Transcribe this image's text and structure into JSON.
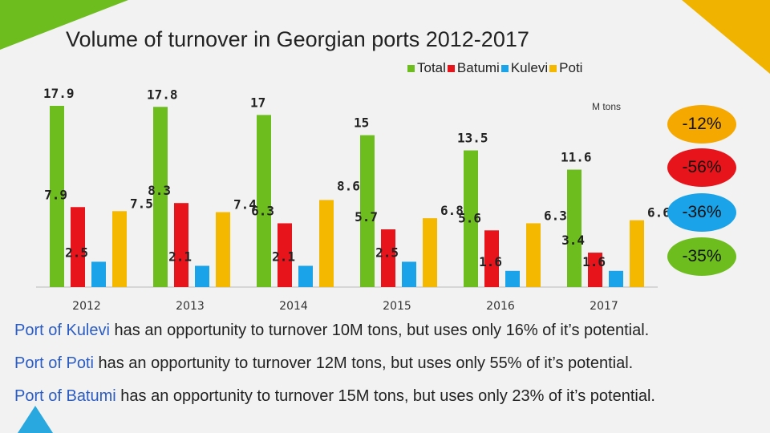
{
  "slide": {
    "title": "Volume of turnover in Georgian ports 2012-2017",
    "unit": "M tons"
  },
  "chart_data": {
    "type": "bar",
    "title": "Volume of turnover in Georgian ports 2012-2017",
    "categories": [
      "2012",
      "2013",
      "2014",
      "2015",
      "2016",
      "2017"
    ],
    "series": [
      {
        "name": "Total",
        "color": "#6cbd1d",
        "values": [
          17.9,
          17.8,
          17,
          15,
          13.5,
          11.6
        ]
      },
      {
        "name": "Batumi",
        "color": "#e8141b",
        "values": [
          7.9,
          8.3,
          6.3,
          5.7,
          5.6,
          3.4
        ]
      },
      {
        "name": "Kulevi",
        "color": "#1aa3e8",
        "values": [
          2.5,
          2.1,
          2.1,
          2.5,
          1.6,
          1.6
        ]
      },
      {
        "name": "Poti",
        "color": "#f5b800",
        "values": [
          7.5,
          7.4,
          8.6,
          6.8,
          6.3,
          6.6
        ]
      }
    ],
    "data_labels": [
      [
        "17.9",
        "7.9",
        "2.5",
        "7.5"
      ],
      [
        "17.8",
        "8.3",
        "2.1",
        "7.4"
      ],
      [
        "17",
        "6.3",
        "2.1",
        "8.6"
      ],
      [
        "15",
        "5.7",
        "2.5",
        "6.8"
      ],
      [
        "13.5",
        "5.6",
        "1.6",
        "6.3"
      ],
      [
        "11.6",
        "3.4",
        "1.6",
        "6.6"
      ]
    ],
    "legend_position": "top-right",
    "grid": false,
    "ylim": [
      0,
      20
    ]
  },
  "badges": [
    {
      "label": "-12%",
      "color": "#f5a800"
    },
    {
      "label": "-56%",
      "color": "#e8141b"
    },
    {
      "label": "-36%",
      "color": "#1aa3e8"
    },
    {
      "label": "-35%",
      "color": "#6cbd1d"
    }
  ],
  "notes": [
    {
      "port": "Port of Kulevi",
      "text": " has an opportunity to turnover 10M tons, but uses only 16% of it’s potential."
    },
    {
      "port": "Port of Poti",
      "text": " has an opportunity to turnover  12M tons, but  uses only 55% of it’s potential."
    },
    {
      "port": "Port of Batumi",
      "text": " has an opportunity to turnover  15M tons, but uses only 23% of it’s potential."
    }
  ]
}
